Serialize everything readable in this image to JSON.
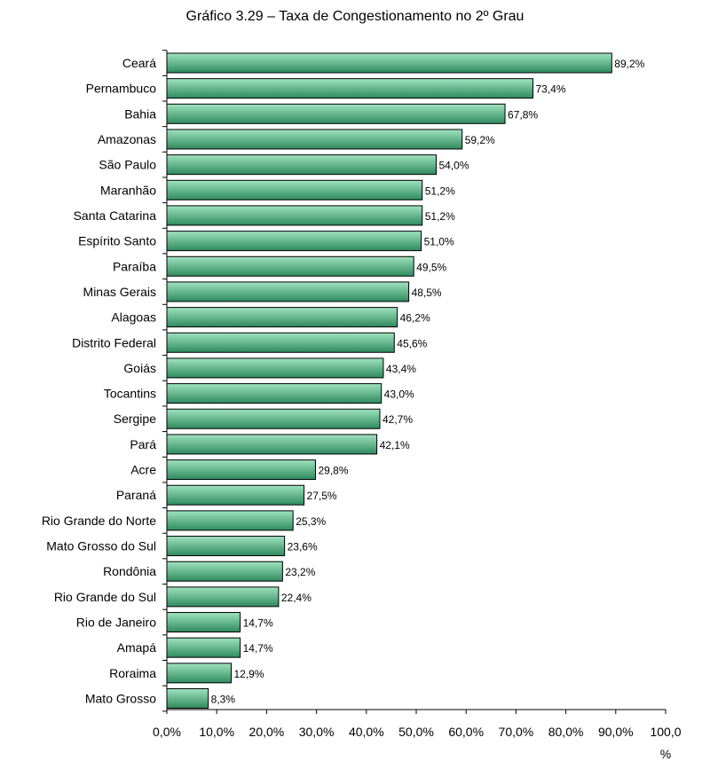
{
  "colors": {
    "bar_fill_top": "#9fe3bf",
    "bar_fill_bottom": "#2f8a5e",
    "bar_stroke": "#000000",
    "axis": "#000000",
    "text": "#000000"
  },
  "chart_data": {
    "type": "bar",
    "orientation": "horizontal",
    "title": "Gráfico 3.29 – Taxa de Congestionamento no 2º Grau",
    "xlabel": "%",
    "ylabel": "",
    "xlim": [
      0,
      100
    ],
    "grid": false,
    "legend": "none",
    "categories": [
      "Ceará",
      "Pernambuco",
      "Bahia",
      "Amazonas",
      "São Paulo",
      "Maranhão",
      "Santa Catarina",
      "Espírito Santo",
      "Paraíba",
      "Minas Gerais",
      "Alagoas",
      "Distrito Federal",
      "Goiás",
      "Tocantins",
      "Sergipe",
      "Pará",
      "Acre",
      "Paraná",
      "Rio Grande do Norte",
      "Mato Grosso do Sul",
      "Rondônia",
      "Rio Grande do Sul",
      "Rio de Janeiro",
      "Amapá",
      "Roraima",
      "Mato Grosso"
    ],
    "values": [
      89.2,
      73.4,
      67.8,
      59.2,
      54.0,
      51.2,
      51.2,
      51.0,
      49.5,
      48.5,
      46.2,
      45.6,
      43.4,
      43.0,
      42.7,
      42.1,
      29.8,
      27.5,
      25.3,
      23.6,
      23.2,
      22.4,
      14.7,
      14.7,
      12.9,
      8.3
    ],
    "value_labels": [
      "89,2%",
      "73,4%",
      "67,8%",
      "59,2%",
      "54,0%",
      "51,2%",
      "51,2%",
      "51,0%",
      "49,5%",
      "48,5%",
      "46,2%",
      "45,6%",
      "43,4%",
      "43,0%",
      "42,7%",
      "42,1%",
      "29,8%",
      "27,5%",
      "25,3%",
      "23,6%",
      "23,2%",
      "22,4%",
      "14,7%",
      "14,7%",
      "12,9%",
      "8,3%"
    ],
    "ticks": [
      0,
      10,
      20,
      30,
      40,
      50,
      60,
      70,
      80,
      90,
      100
    ],
    "tick_labels": [
      "0,0%",
      "10,0%",
      "20,0%",
      "30,0%",
      "40,0%",
      "50,0%",
      "60,0%",
      "70,0%",
      "80,0%",
      "90,0%",
      "100,0"
    ]
  }
}
